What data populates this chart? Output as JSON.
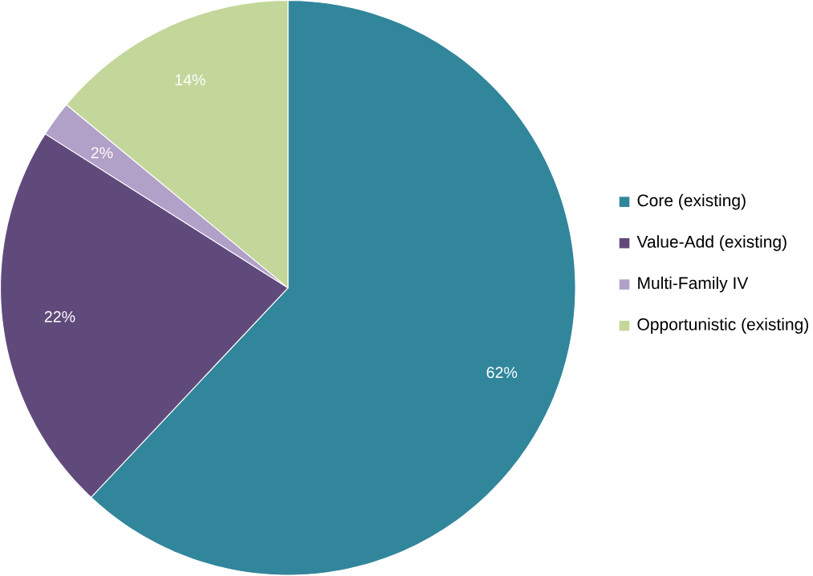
{
  "chart_data": {
    "type": "pie",
    "categories": [
      "Core (existing)",
      "Value-Add (existing)",
      "Multi-Family IV",
      "Opportunistic (existing)"
    ],
    "values": [
      62,
      22,
      2,
      14
    ],
    "colors": [
      "#31869b",
      "#604a7b",
      "#b1a0c7",
      "#c4d79b"
    ],
    "value_labels": [
      "62%",
      "22%",
      "2%",
      "14%"
    ],
    "legend": "right"
  }
}
